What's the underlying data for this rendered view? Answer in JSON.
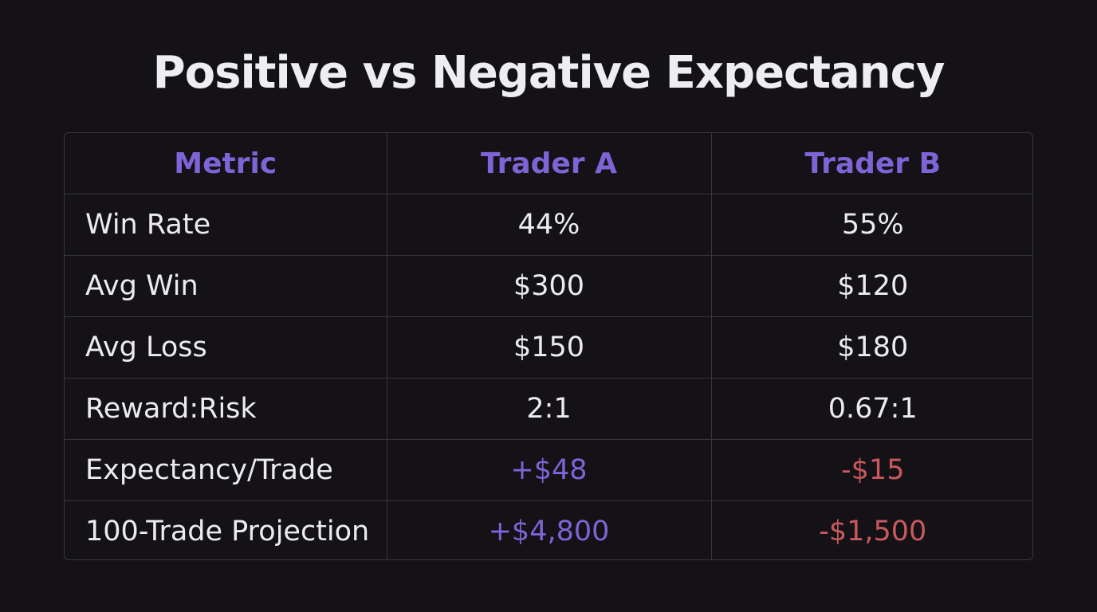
{
  "title": "Positive vs Negative Expectancy",
  "colors": {
    "background": "#141217",
    "accent": "#7e64d6",
    "negative": "#c9595d",
    "text": "#ecebf0"
  },
  "table": {
    "headers": [
      "Metric",
      "Trader A",
      "Trader B"
    ],
    "rows": [
      {
        "metric": "Win Rate",
        "a": "44%",
        "b": "55%"
      },
      {
        "metric": "Avg Win",
        "a": "$300",
        "b": "$120"
      },
      {
        "metric": "Avg Loss",
        "a": "$150",
        "b": "$180"
      },
      {
        "metric": "Reward:Risk",
        "a": "2:1",
        "b": "0.67:1"
      },
      {
        "metric": "Expectancy/Trade",
        "a": "+$48",
        "b": "-$15"
      },
      {
        "metric": "100-Trade Projection",
        "a": "+$4,800",
        "b": "-$1,500"
      }
    ]
  }
}
